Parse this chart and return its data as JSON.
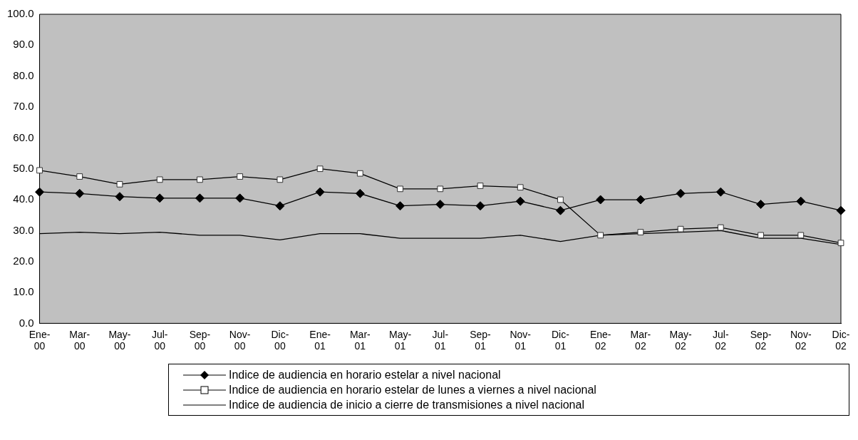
{
  "chart_data": {
    "type": "line",
    "categories": [
      "Ene-00",
      "Mar-00",
      "May-00",
      "Jul-00",
      "Sep-00",
      "Nov-00",
      "Dic-00",
      "Ene-01",
      "Mar-01",
      "May-01",
      "Jul-01",
      "Sep-01",
      "Nov-01",
      "Dic-01",
      "Ene-02",
      "Mar-02",
      "May-02",
      "Jul-02",
      "Sep-02",
      "Nov-02",
      "Dic-02"
    ],
    "series": [
      {
        "name": "Indice de audiencia en horario estelar a nivel nacional",
        "color": "#000000",
        "marker": "diamond",
        "values": [
          42.5,
          42,
          41,
          40.5,
          40.5,
          40.5,
          38,
          42.5,
          42,
          38,
          38.5,
          38,
          39.5,
          36.5,
          40,
          40,
          42,
          42.5,
          38.5,
          39.5,
          36.5
        ]
      },
      {
        "name": "Indice de audiencia en horario estelar de lunes a viernes a nivel nacional",
        "color": "#000000",
        "marker": "square",
        "values": [
          49.5,
          47.5,
          45,
          46.5,
          46.5,
          47.5,
          46.5,
          50,
          48.5,
          43.5,
          43.5,
          44.5,
          44,
          40,
          28.5,
          29.5,
          30.5,
          31,
          28.5,
          28.5,
          26
        ]
      },
      {
        "name": "Indice de audiencia de inicio a cierre de transmisiones a nivel nacional",
        "color": "#000000",
        "marker": "none",
        "values": [
          29,
          29.5,
          29,
          29.5,
          28.5,
          28.5,
          27,
          29,
          29,
          27.5,
          27.5,
          27.5,
          28.5,
          26.5,
          28.5,
          29,
          29.5,
          30,
          27.5,
          27.5,
          25.5
        ]
      }
    ],
    "ylim": [
      0,
      100
    ],
    "yticks": [
      {
        "value": 0,
        "label": "0.0"
      },
      {
        "value": 10,
        "label": "10.0"
      },
      {
        "value": 20,
        "label": "20.0"
      },
      {
        "value": 30,
        "label": "30.0"
      },
      {
        "value": 40,
        "label": "40.0"
      },
      {
        "value": 50,
        "label": "50.0"
      },
      {
        "value": 60,
        "label": "60.0"
      },
      {
        "value": 70,
        "label": "70.0"
      },
      {
        "value": 80,
        "label": "80.0"
      },
      {
        "value": 90,
        "label": "90.0"
      },
      {
        "value": 100,
        "label": "100.0"
      }
    ],
    "grid": false,
    "legend": "bottom"
  }
}
